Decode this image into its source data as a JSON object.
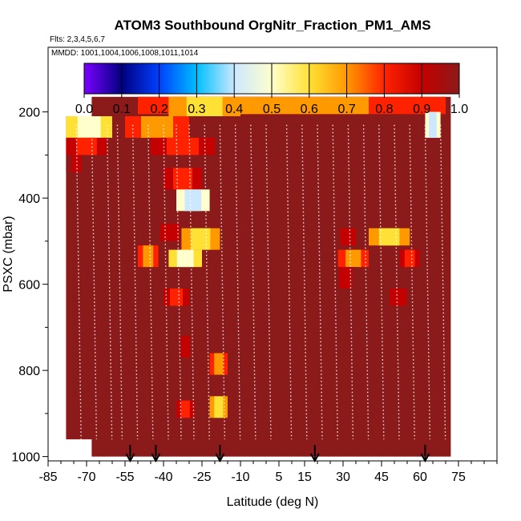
{
  "chart_data": {
    "type": "heatmap",
    "title": "ATOM3 Southbound OrgNitr_Fraction_PM1_AMS",
    "flights_label": "Flts: 2,3,4,5,6,7",
    "dates_label": "MMDD: 1001,1004,1006,1008,1011,1014",
    "xlabel": "Latitude (deg N)",
    "ylabel": "PSXC (mbar)",
    "x_ticks": [
      -85,
      -70,
      -55,
      -40,
      -25,
      -10,
      5,
      15,
      30,
      45,
      60,
      75
    ],
    "y_ticks": [
      200,
      400,
      600,
      800,
      1000
    ],
    "xlim": [
      -85,
      90
    ],
    "ylim": [
      1010,
      50
    ],
    "colorbar": {
      "ticks": [
        "0.0",
        "0.1",
        "0.2",
        "0.3",
        "0.4",
        "0.5",
        "0.6",
        "0.7",
        "0.8",
        "0.9",
        "1.0"
      ],
      "colors": [
        "#7b00ff",
        "#00007f",
        "#0040ff",
        "#00bfff",
        "#cce8ff",
        "#ffffcc",
        "#ffe135",
        "#ff9900",
        "#ff2200",
        "#c40000",
        "#8b1a1a"
      ]
    },
    "background_value": 0.98,
    "coverage": [
      {
        "lat_min": -78,
        "lat_max": 70,
        "p_top": 210,
        "p_bottom": 960
      },
      {
        "lat_min": -68,
        "lat_max": 72,
        "p_top": 165,
        "p_bottom": 1000
      }
    ],
    "anomaly_cells": [
      {
        "lat": [
          -50,
          70
        ],
        "p": [
          165,
          205
        ],
        "value": 0.7
      },
      {
        "lat": [
          -38,
          -10
        ],
        "p": [
          165,
          210
        ],
        "value": 0.6
      },
      {
        "lat": [
          -78,
          -60
        ],
        "p": [
          210,
          260
        ],
        "value": 0.45
      },
      {
        "lat": [
          -55,
          -30
        ],
        "p": [
          210,
          260
        ],
        "value": 0.65
      },
      {
        "lat": [
          62,
          68
        ],
        "p": [
          200,
          260
        ],
        "value": 0.4
      },
      {
        "lat": [
          -78,
          -62
        ],
        "p": [
          260,
          300
        ],
        "value": 0.75
      },
      {
        "lat": [
          -45,
          -20
        ],
        "p": [
          260,
          300
        ],
        "value": 0.8
      },
      {
        "lat": [
          -78,
          -70
        ],
        "p": [
          300,
          340
        ],
        "value": 0.85
      },
      {
        "lat": [
          -40,
          -25
        ],
        "p": [
          330,
          380
        ],
        "value": 0.75
      },
      {
        "lat": [
          -35,
          -22
        ],
        "p": [
          380,
          430
        ],
        "value": 0.35
      },
      {
        "lat": [
          -45,
          -30
        ],
        "p": [
          460,
          500
        ],
        "value": 0.85
      },
      {
        "lat": [
          -33,
          -18
        ],
        "p": [
          470,
          520
        ],
        "value": 0.55
      },
      {
        "lat": [
          26,
          38
        ],
        "p": [
          470,
          510
        ],
        "value": 0.85
      },
      {
        "lat": [
          40,
          56
        ],
        "p": [
          470,
          510
        ],
        "value": 0.6
      },
      {
        "lat": [
          -50,
          -42
        ],
        "p": [
          510,
          560
        ],
        "value": 0.7
      },
      {
        "lat": [
          -38,
          -25
        ],
        "p": [
          520,
          560
        ],
        "value": 0.45
      },
      {
        "lat": [
          28,
          40
        ],
        "p": [
          520,
          560
        ],
        "value": 0.7
      },
      {
        "lat": [
          52,
          60
        ],
        "p": [
          520,
          560
        ],
        "value": 0.75
      },
      {
        "lat": [
          26,
          36
        ],
        "p": [
          560,
          610
        ],
        "value": 0.88
      },
      {
        "lat": [
          -40,
          -30
        ],
        "p": [
          610,
          650
        ],
        "value": 0.8
      },
      {
        "lat": [
          45,
          58
        ],
        "p": [
          610,
          650
        ],
        "value": 0.85
      },
      {
        "lat": [
          -35,
          -28
        ],
        "p": [
          720,
          770
        ],
        "value": 0.9
      },
      {
        "lat": [
          -22,
          -15
        ],
        "p": [
          760,
          810
        ],
        "value": 0.65
      },
      {
        "lat": [
          -22,
          -15
        ],
        "p": [
          860,
          910
        ],
        "value": 0.6
      },
      {
        "lat": [
          -35,
          -28
        ],
        "p": [
          870,
          910
        ],
        "value": 0.75
      }
    ],
    "flight_track_lats": [
      -74,
      -68,
      -62,
      -58,
      -52,
      -46,
      -40,
      -35,
      -30,
      -24,
      -18,
      -12,
      -6,
      0,
      8,
      14,
      20,
      26,
      32,
      38,
      44,
      50,
      56,
      62,
      68
    ],
    "profile_arrow_lats": [
      -53,
      -43,
      -18,
      19,
      62
    ]
  }
}
